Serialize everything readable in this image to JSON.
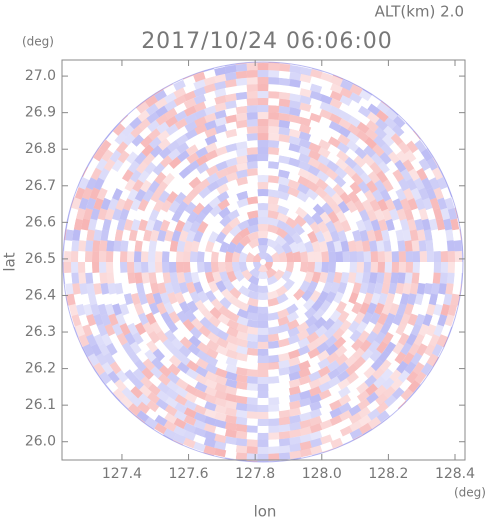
{
  "chart_data": {
    "type": "radar-ppi",
    "title": "2017/10/24 06:06:00",
    "subtitle": "ALT(km) 2.0",
    "x_label": "lon",
    "y_label": "lat",
    "x_unit": "(deg)",
    "y_unit": "(deg)",
    "xlim": [
      127.22,
      128.43
    ],
    "ylim": [
      25.95,
      27.044
    ],
    "xticks": [
      127.4,
      127.6,
      127.8,
      {
        "value": 128.0,
        "label": "128.0"
      },
      128.2,
      128.4
    ],
    "yticks": [
      {
        "value": 26.0,
        "label": "26.0"
      },
      26.1,
      26.2,
      26.3,
      26.4,
      26.5,
      26.6,
      26.7,
      26.8,
      26.9,
      {
        "value": 27.0,
        "label": "27.0"
      }
    ]
  }
}
